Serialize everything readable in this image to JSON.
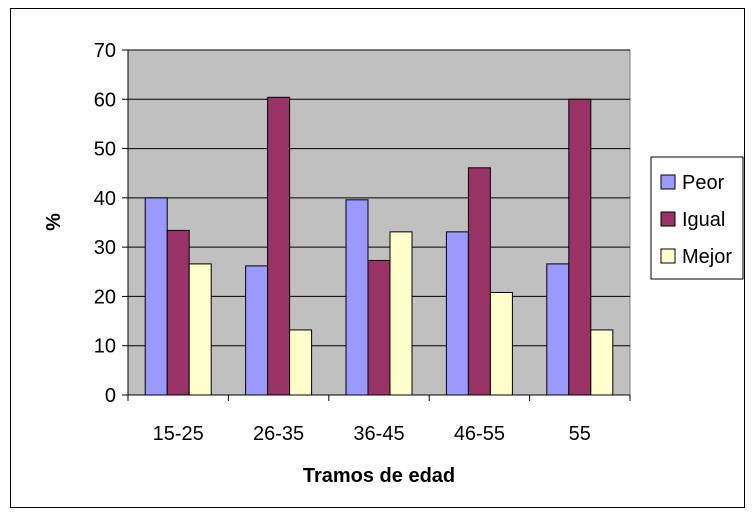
{
  "chart_data": {
    "type": "bar",
    "categories": [
      "15-25",
      "26-35",
      "36-45",
      "46-55",
      "55"
    ],
    "series": [
      {
        "name": "Peor",
        "values": [
          40,
          26.2,
          39.6,
          33.1,
          26.6
        ],
        "color": "#9999ff"
      },
      {
        "name": "Igual",
        "values": [
          33.4,
          60.4,
          27.3,
          46.1,
          60
        ],
        "color": "#993366"
      },
      {
        "name": "Mejor",
        "values": [
          26.6,
          13.2,
          33.1,
          20.8,
          13.2
        ],
        "color": "#ffffcc"
      }
    ],
    "xlabel": "Tramos de edad",
    "ylabel": "%",
    "ylim": [
      0,
      70
    ],
    "yticks": [
      "0",
      "10",
      "20",
      "30",
      "40",
      "50",
      "60",
      "70"
    ],
    "grid": true,
    "plot_background": "#c0c0c0",
    "legend_position": "right"
  }
}
